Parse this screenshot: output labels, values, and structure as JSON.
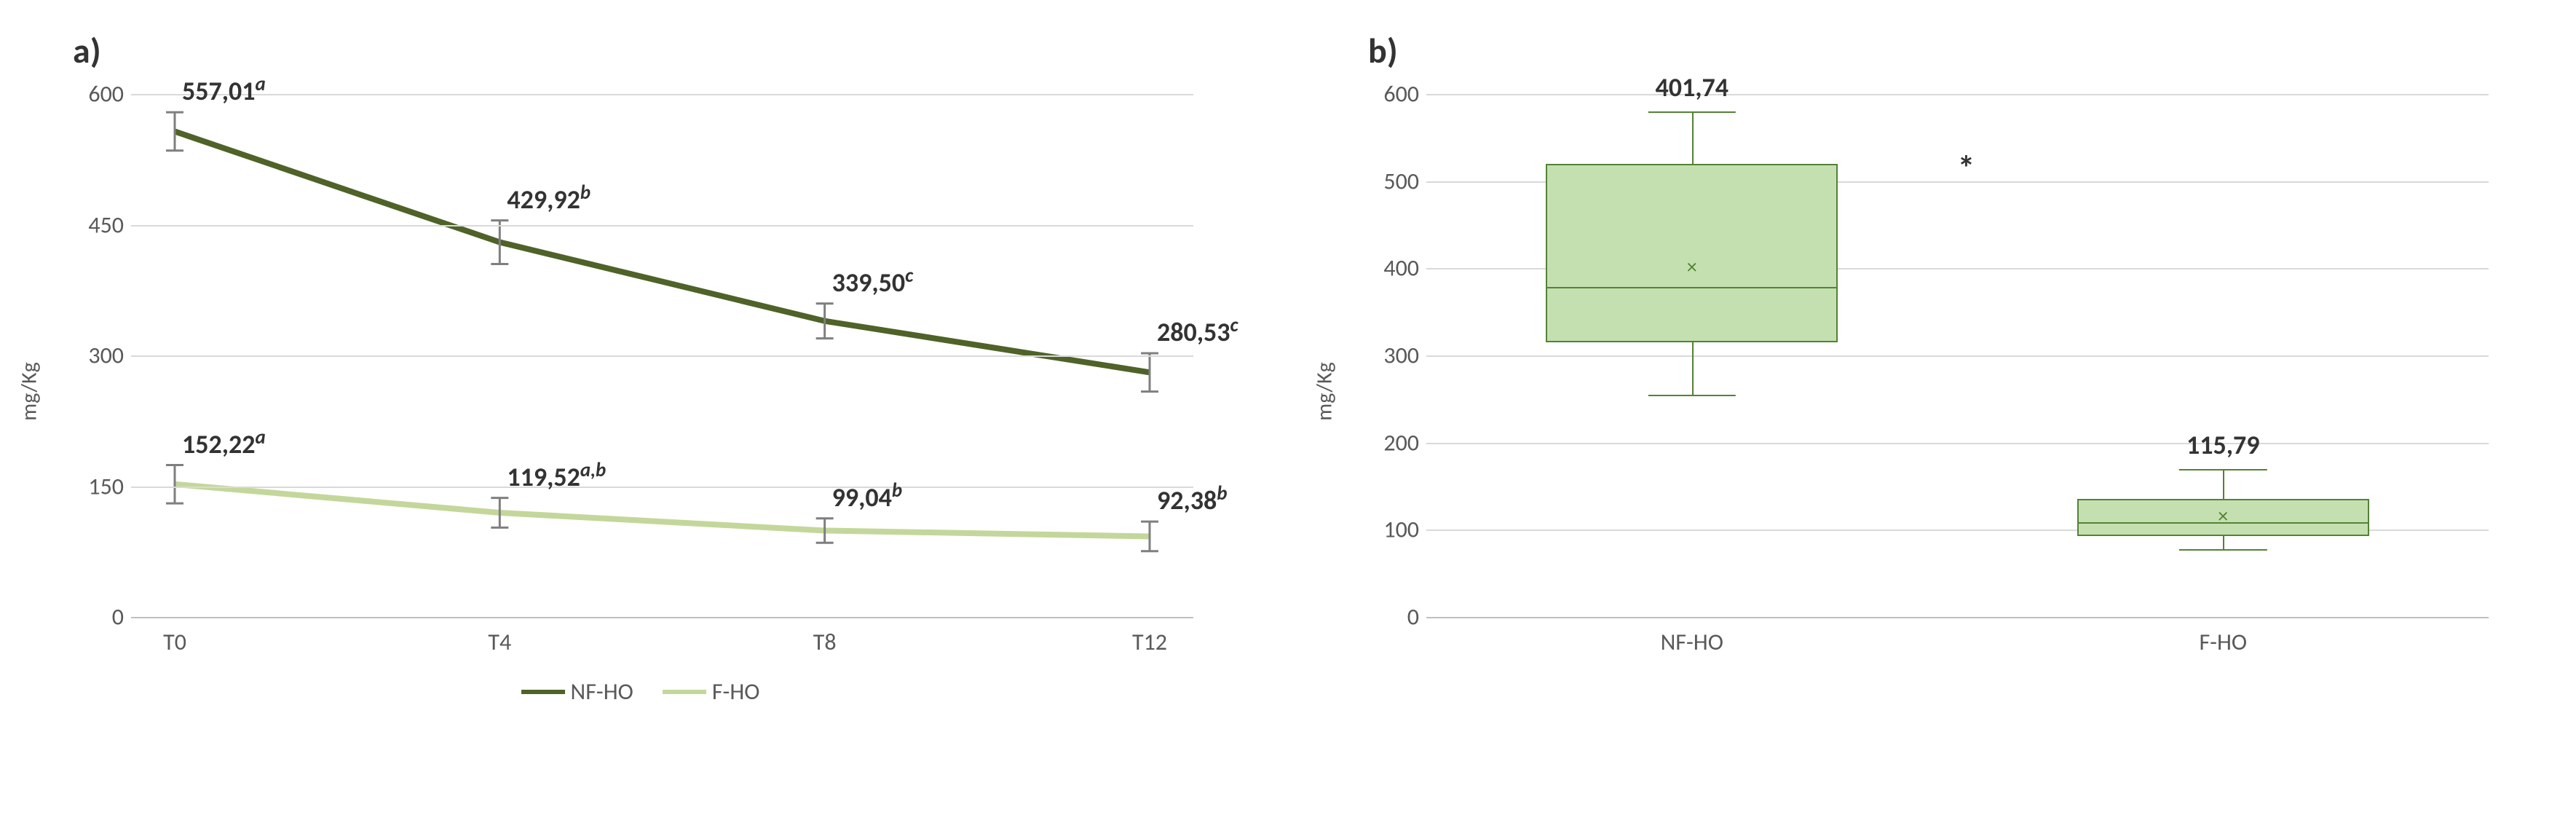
{
  "panel_a": {
    "title": "a)",
    "type": "line",
    "y_axis_label": "mg/Kg",
    "ylim": [
      0,
      600
    ],
    "ytick_step": 150,
    "gridline_color": "#d9d9d9",
    "axis_color": "#bfbfbf",
    "tick_font_color": "#595959",
    "categories": [
      "T0",
      "T4",
      "T8",
      "T12"
    ],
    "series": [
      {
        "name": "NF-HO",
        "color": "#4f6228",
        "line_width": 8,
        "values": [
          557.01,
          429.92,
          339.5,
          280.53
        ],
        "error": [
          22,
          25,
          20,
          22
        ],
        "labels": [
          "557,01",
          "429,92",
          "339,50",
          "280,53"
        ],
        "superscripts": [
          "a",
          "b",
          "c",
          "c"
        ]
      },
      {
        "name": "F-HO",
        "color": "#c4d79b",
        "line_width": 8,
        "values": [
          152.22,
          119.52,
          99.04,
          92.38
        ],
        "error": [
          22,
          17,
          14,
          17
        ],
        "labels": [
          "152,22",
          "119,52",
          "99,04",
          "92,38"
        ],
        "superscripts": [
          "a",
          "a,b",
          "b",
          "b"
        ]
      }
    ],
    "error_bar_color": "#7f7f7f",
    "legend": [
      "NF-HO",
      "F-HO"
    ]
  },
  "panel_b": {
    "title": "b)",
    "type": "boxplot",
    "y_axis_label": "mg/Kg",
    "ylim": [
      0,
      600
    ],
    "ytick_step": 100,
    "gridline_color": "#d9d9d9",
    "axis_color": "#bfbfbf",
    "tick_font_color": "#595959",
    "categories": [
      "NF-HO",
      "F-HO"
    ],
    "significance_marker": "*",
    "boxes": [
      {
        "label": "401,74",
        "fill_color": "#c4e0b0",
        "border_color": "#548235",
        "whisker_low": 255,
        "q1": 315,
        "median": 380,
        "mean": 401.74,
        "q3": 520,
        "whisker_high": 580,
        "mean_marker_color": "#548235"
      },
      {
        "label": "115,79",
        "fill_color": "#c4e0b0",
        "border_color": "#548235",
        "whisker_low": 78,
        "q1": 93,
        "median": 110,
        "mean": 115.79,
        "q3": 135,
        "whisker_high": 170,
        "mean_marker_color": "#548235"
      }
    ]
  }
}
